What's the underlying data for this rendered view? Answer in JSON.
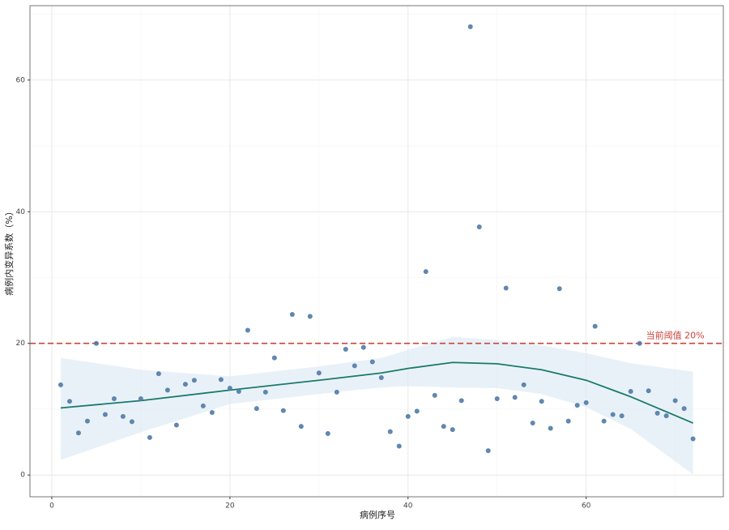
{
  "chart_data": {
    "type": "scatter",
    "x_label": "病例序号",
    "y_label": "病例内变异系数（%）",
    "xlim": [
      -2.45,
      75.4
    ],
    "ylim": [
      -3.3,
      71.3
    ],
    "xticks": [
      0,
      20,
      40,
      60
    ],
    "yticks": [
      0,
      20,
      40,
      60
    ],
    "x_minor_grid": [
      10,
      30,
      50,
      70
    ],
    "y_minor_grid": [
      10,
      30,
      50,
      70
    ],
    "grid": true,
    "series": [
      {
        "type": "scatter",
        "color": "#4f7aa6",
        "x": [
          1,
          2,
          3,
          4,
          5,
          6,
          7,
          8,
          9,
          10,
          11,
          12,
          13,
          14,
          15,
          16,
          17,
          18,
          19,
          20,
          21,
          22,
          23,
          24,
          25,
          26,
          27,
          28,
          29,
          30,
          31,
          32,
          33,
          34,
          35,
          36,
          37,
          38,
          39,
          40,
          41,
          42,
          43,
          44,
          45,
          46,
          47,
          48,
          49,
          50,
          51,
          52,
          53,
          54,
          55,
          56,
          57,
          58,
          59,
          60,
          61,
          62,
          63,
          64,
          65,
          66,
          67,
          68,
          69,
          70,
          71,
          72
        ],
        "values": [
          13.7,
          11.2,
          6.4,
          8.2,
          20.0,
          9.2,
          11.6,
          8.9,
          8.1,
          11.6,
          5.7,
          15.4,
          12.9,
          7.6,
          13.8,
          14.4,
          10.5,
          9.5,
          14.5,
          13.2,
          12.7,
          22.0,
          10.1,
          12.6,
          17.8,
          9.8,
          24.4,
          7.4,
          24.1,
          15.5,
          6.3,
          12.6,
          19.1,
          16.6,
          19.4,
          17.2,
          14.8,
          6.6,
          4.4,
          8.9,
          9.7,
          30.9,
          12.1,
          7.4,
          6.9,
          11.3,
          68.1,
          37.7,
          3.7,
          11.6,
          28.4,
          11.8,
          13.7,
          7.9,
          11.2,
          7.1,
          28.3,
          8.2,
          10.6,
          11.0,
          22.6,
          8.2,
          9.2,
          9.0,
          12.7,
          20.0,
          12.8,
          9.4,
          9.0,
          11.3,
          10.1,
          5.5
        ]
      },
      {
        "type": "smooth",
        "color": "#1a7a6a",
        "band_color": "#dbe8f4",
        "x": [
          1,
          10,
          20,
          30,
          37,
          40,
          45,
          50,
          55,
          60,
          65,
          72
        ],
        "values": [
          10.2,
          11.3,
          12.9,
          14.4,
          15.5,
          16.2,
          17.1,
          16.9,
          16.0,
          14.4,
          11.9,
          7.9
        ],
        "lower": [
          2.3,
          6.5,
          10.8,
          12.3,
          13.3,
          13.5,
          13.3,
          13.2,
          12.3,
          10.3,
          7.0,
          0.1
        ],
        "upper": [
          17.8,
          16.0,
          15.0,
          16.5,
          17.8,
          19.0,
          21.0,
          20.5,
          19.7,
          18.5,
          17.0,
          15.7
        ]
      }
    ],
    "threshold": {
      "value": 20,
      "color": "#c8433a",
      "label": "当前阈值 20%",
      "label_x": 70
    }
  }
}
